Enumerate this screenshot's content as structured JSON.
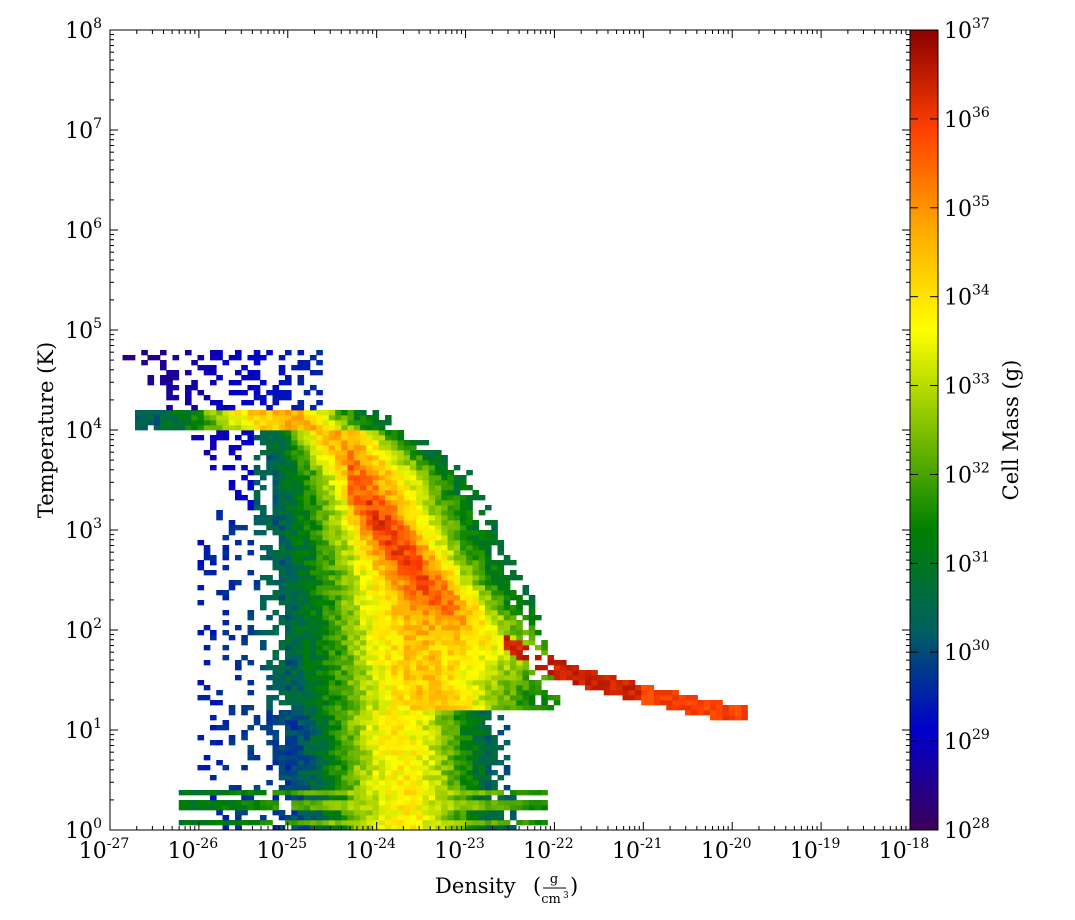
{
  "chart_data": {
    "type": "heatmap",
    "xlabel": "Density",
    "xunit": {
      "numerator": "g",
      "denominator": "cm",
      "denominator_exp": "3"
    },
    "ylabel": "Temperature  (K)",
    "colorbar_label": "Cell Mass  (g)",
    "scale": {
      "x": "log",
      "y": "log",
      "color": "log"
    },
    "xlim": [
      1e-27,
      1e-18
    ],
    "ylim": [
      1,
      100000000.0
    ],
    "clim": [
      1e+28,
      1e+37
    ],
    "x_ticks": [
      {
        "base": "10",
        "exp": "-27"
      },
      {
        "base": "10",
        "exp": "-26"
      },
      {
        "base": "10",
        "exp": "-25"
      },
      {
        "base": "10",
        "exp": "-24"
      },
      {
        "base": "10",
        "exp": "-23"
      },
      {
        "base": "10",
        "exp": "-22"
      },
      {
        "base": "10",
        "exp": "-21"
      },
      {
        "base": "10",
        "exp": "-20"
      },
      {
        "base": "10",
        "exp": "-19"
      },
      {
        "base": "10",
        "exp": "-18"
      }
    ],
    "y_ticks": [
      {
        "base": "10",
        "exp": "0"
      },
      {
        "base": "10",
        "exp": "1"
      },
      {
        "base": "10",
        "exp": "2"
      },
      {
        "base": "10",
        "exp": "3"
      },
      {
        "base": "10",
        "exp": "4"
      },
      {
        "base": "10",
        "exp": "5"
      },
      {
        "base": "10",
        "exp": "6"
      },
      {
        "base": "10",
        "exp": "7"
      },
      {
        "base": "10",
        "exp": "8"
      }
    ],
    "colorbar_ticks": [
      {
        "base": "10",
        "exp": "28"
      },
      {
        "base": "10",
        "exp": "29"
      },
      {
        "base": "10",
        "exp": "30"
      },
      {
        "base": "10",
        "exp": "31"
      },
      {
        "base": "10",
        "exp": "32"
      },
      {
        "base": "10",
        "exp": "33"
      },
      {
        "base": "10",
        "exp": "34"
      },
      {
        "base": "10",
        "exp": "35"
      },
      {
        "base": "10",
        "exp": "36"
      },
      {
        "base": "10",
        "exp": "37"
      }
    ],
    "colormap": [
      "#3d0059",
      "#0000cc",
      "#006060",
      "#008000",
      "#80c000",
      "#ffff00",
      "#ffaa00",
      "#ff4000",
      "#8b0000"
    ],
    "approx_distribution": {
      "log_density_range_occupied": [
        -26.8,
        -19.9
      ],
      "log_temperature_range_occupied": [
        0.0,
        4.8
      ],
      "equilibrium_track_log_density": [
        -24.5,
        -24.0,
        -23.5,
        -23.0,
        -22.5,
        -22.0,
        -21.5,
        -21.0,
        -20.5,
        -20.0
      ],
      "equilibrium_track_log_temperature": [
        3.75,
        3.1,
        2.55,
        2.15,
        1.85,
        1.62,
        1.48,
        1.36,
        1.26,
        1.17
      ],
      "peak_log_cell_mass": 36.5
    }
  }
}
